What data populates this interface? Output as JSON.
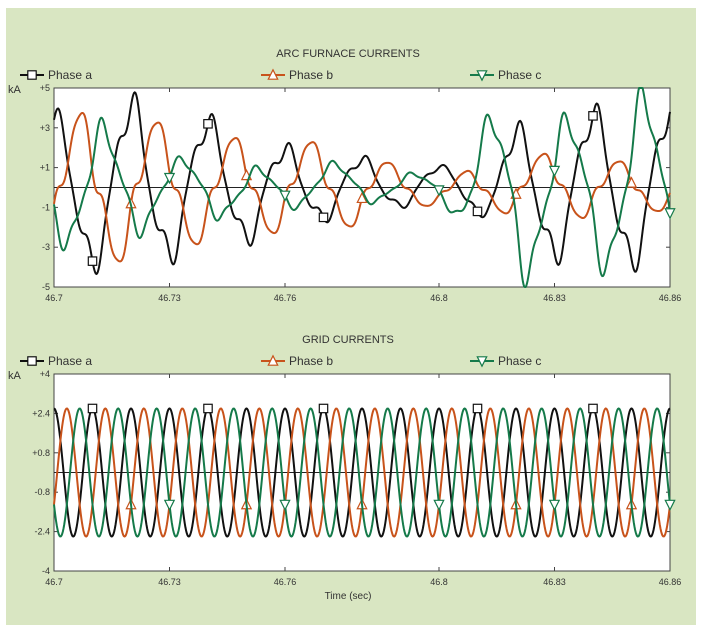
{
  "colors": {
    "background": "#d9e6c2",
    "plot_bg": "#ffffff",
    "phase_a": "#111111",
    "phase_b": "#c8531b",
    "phase_c": "#157a4a"
  },
  "chart_data": [
    {
      "type": "line",
      "title": "ARC FURNACE CURRENTS",
      "ylabel": "kA",
      "xlabel": "",
      "xlim": [
        46.7,
        46.86
      ],
      "ylim": [
        -5,
        5
      ],
      "x_ticks": [
        46.7,
        46.73,
        46.76,
        46.8,
        46.83,
        46.86
      ],
      "x_tick_labels": [
        "46.7",
        "46.73",
        "46.76",
        "46.8",
        "46.83",
        "46.86"
      ],
      "y_ticks": [
        5,
        3,
        1,
        -1,
        -3,
        -5
      ],
      "y_tick_labels": [
        "+5",
        "+3",
        "+1",
        "-1",
        "-3",
        "-5"
      ],
      "legend_placement": "top",
      "fundamental_hz": 50,
      "series": [
        {
          "name": "Phase a",
          "marker": "square",
          "color": "#111111",
          "x": [
            46.7,
            46.71,
            46.72,
            46.73,
            46.74,
            46.75,
            46.76,
            46.77,
            46.78,
            46.79,
            46.8,
            46.81,
            46.82,
            46.83,
            46.84,
            46.85,
            46.86
          ],
          "amplitude": [
            3.2,
            3.6,
            4.0,
            3.3,
            2.9,
            2.5,
            2.0,
            1.5,
            1.2,
            0.8,
            0.7,
            1.2,
            3.0,
            3.3,
            3.5,
            3.6,
            3.7
          ],
          "offset": [
            0.2,
            -0.1,
            0.1,
            0.0,
            0.3,
            0.0,
            -0.1,
            0.0,
            0.2,
            -0.1,
            0.3,
            0.0,
            -0.2,
            0.0,
            0.1,
            0.0,
            0.1
          ],
          "markers_x": [
            46.71,
            46.74,
            46.77,
            46.81,
            46.84
          ]
        },
        {
          "name": "Phase b",
          "marker": "triangle-up",
          "color": "#c8531b",
          "x": [
            46.7,
            46.71,
            46.72,
            46.73,
            46.74,
            46.75,
            46.76,
            46.77,
            46.78,
            46.79,
            46.8,
            46.81,
            46.82,
            46.83,
            46.84,
            46.85,
            46.86
          ],
          "amplitude": [
            3.0,
            3.6,
            3.3,
            2.8,
            2.4,
            2.2,
            2.1,
            2.0,
            1.6,
            1.0,
            0.6,
            0.9,
            1.2,
            1.4,
            1.4,
            1.2,
            1.0
          ],
          "offset": [
            0.0,
            -0.2,
            0.1,
            0.0,
            -0.1,
            0.0,
            0.1,
            0.0,
            -0.1,
            0.0,
            -0.2,
            -0.1,
            0.0,
            0.2,
            0.0,
            -0.1,
            0.0
          ],
          "markers_x": [
            46.72,
            46.75,
            46.78,
            46.82,
            46.85
          ]
        },
        {
          "name": "Phase c",
          "marker": "triangle-down",
          "color": "#157a4a",
          "x": [
            46.7,
            46.71,
            46.72,
            46.73,
            46.74,
            46.75,
            46.76,
            46.77,
            46.78,
            46.79,
            46.8,
            46.81,
            46.82,
            46.83,
            46.84,
            46.85,
            46.86
          ],
          "amplitude": [
            2.6,
            2.9,
            2.1,
            1.2,
            1.4,
            1.1,
            0.9,
            0.9,
            0.8,
            0.6,
            0.7,
            2.8,
            4.3,
            3.2,
            3.6,
            4.3,
            3.9
          ],
          "offset": [
            0.0,
            0.2,
            -0.2,
            0.1,
            0.0,
            -0.2,
            -0.1,
            0.3,
            0.1,
            0.0,
            0.1,
            0.0,
            0.0,
            -0.2,
            0.0,
            0.1,
            0.0
          ],
          "markers_x": [
            46.73,
            46.76,
            46.8,
            46.83,
            46.86
          ]
        }
      ]
    },
    {
      "type": "line",
      "title": "GRID CURRENTS",
      "ylabel": "kA",
      "xlabel": "Time (sec)",
      "xlim": [
        46.7,
        46.86
      ],
      "ylim": [
        -4,
        4
      ],
      "x_ticks": [
        46.7,
        46.73,
        46.76,
        46.8,
        46.83,
        46.86
      ],
      "x_tick_labels": [
        "46.7",
        "46.73",
        "46.76",
        "46.8",
        "46.83",
        "46.86"
      ],
      "y_ticks": [
        4,
        2.4,
        0.8,
        -0.8,
        -2.4,
        -4
      ],
      "y_tick_labels": [
        "+4",
        "+2.4",
        "+0.8",
        "-0.8",
        "-2.4",
        "-4"
      ],
      "legend_placement": "top",
      "fundamental_hz": 100,
      "series": [
        {
          "name": "Phase a",
          "marker": "square",
          "color": "#111111",
          "amplitude": 2.6,
          "phase_deg": 90,
          "markers_x": [
            46.71,
            46.74,
            46.77,
            46.81,
            46.84
          ]
        },
        {
          "name": "Phase b",
          "marker": "triangle-up",
          "color": "#c8531b",
          "amplitude": 2.6,
          "phase_deg": -30,
          "markers_x": [
            46.72,
            46.75,
            46.78,
            46.82,
            46.85
          ]
        },
        {
          "name": "Phase c",
          "marker": "triangle-down",
          "color": "#157a4a",
          "amplitude": 2.6,
          "phase_deg": 210,
          "markers_x": [
            46.73,
            46.76,
            46.8,
            46.83,
            46.86
          ]
        }
      ]
    }
  ]
}
